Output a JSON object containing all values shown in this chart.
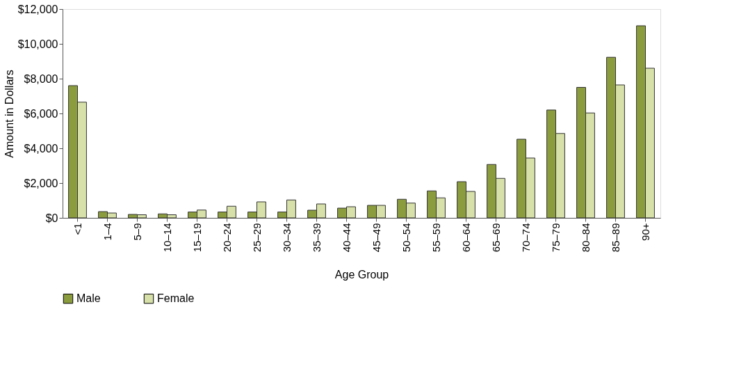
{
  "chart_data": {
    "type": "bar",
    "xlabel": "Age Group",
    "ylabel": "Amount in Dollars",
    "categories": [
      "<1",
      "1–4",
      "5–9",
      "10–14",
      "15–19",
      "20–24",
      "25–29",
      "30–34",
      "35–39",
      "40–44",
      "45–49",
      "50–54",
      "55–59",
      "60–64",
      "65–69",
      "70–74",
      "75–79",
      "80–84",
      "85–89",
      "90+"
    ],
    "series": [
      {
        "name": "Male",
        "color": "#8b9c3e",
        "values": [
          7600,
          360,
          200,
          230,
          340,
          340,
          340,
          340,
          440,
          560,
          720,
          1070,
          1550,
          2080,
          3070,
          4520,
          6200,
          7500,
          9230,
          11040
        ]
      },
      {
        "name": "Female",
        "color": "#d6e0a8",
        "values": [
          6650,
          280,
          180,
          180,
          450,
          670,
          920,
          1030,
          800,
          640,
          720,
          850,
          1150,
          1520,
          2270,
          3440,
          4850,
          6030,
          7640,
          8600
        ]
      }
    ],
    "ylim": [
      0,
      12000
    ],
    "yticks": [
      {
        "value": 0,
        "label": "$0"
      },
      {
        "value": 2000,
        "label": "$2,000"
      },
      {
        "value": 4000,
        "label": "$4,000"
      },
      {
        "value": 6000,
        "label": "$6,000"
      },
      {
        "value": 8000,
        "label": "$8,000"
      },
      {
        "value": 10000,
        "label": "$10,000"
      },
      {
        "value": 12000,
        "label": "$12,000"
      }
    ],
    "grid": false,
    "legend": "bottom"
  }
}
